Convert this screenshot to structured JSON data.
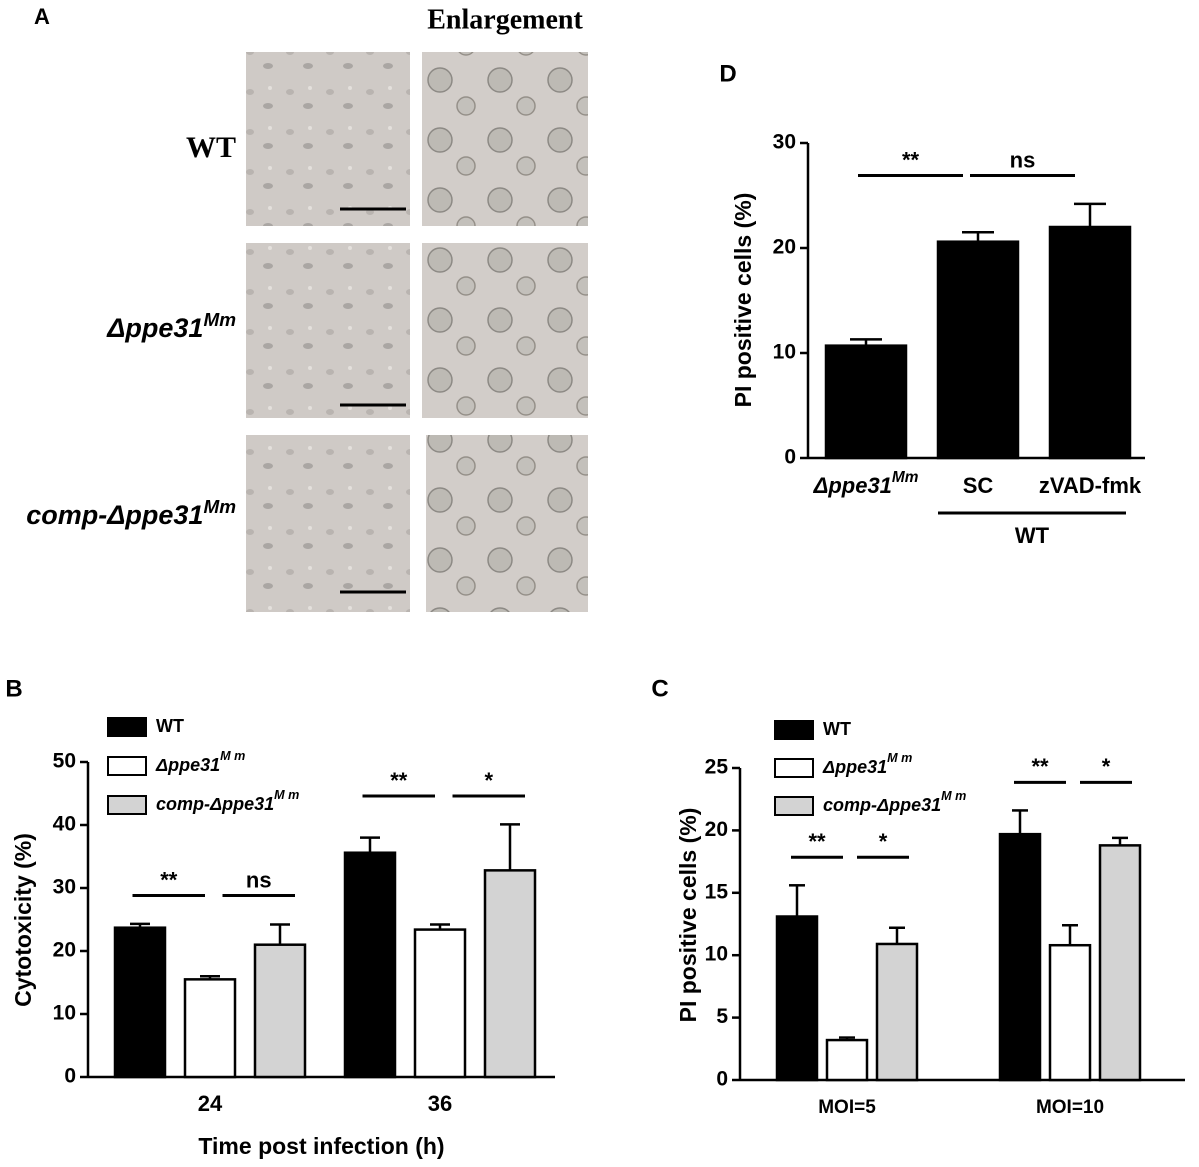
{
  "panel_a": {
    "label": "A",
    "title": "Enlargement",
    "rows": [
      {
        "label": "WT"
      },
      {
        "label": "Δppe31",
        "superscript": "Mm"
      },
      {
        "label": "comp-Δppe31",
        "superscript": "Mm"
      }
    ]
  },
  "chart_data": [
    {
      "type": "bar",
      "panel": "B",
      "ylabel": "Cytotoxicity (%)",
      "xlabel": "Time post infection (h)",
      "categories": [
        "24",
        "36"
      ],
      "ylim": [
        0,
        50
      ],
      "yticks": [
        0,
        10,
        20,
        30,
        40,
        50
      ],
      "series": [
        {
          "name": "WT",
          "color": "#000000",
          "values": [
            23.7,
            35.6
          ],
          "errors": [
            0.6,
            2.4
          ]
        },
        {
          "name": "Δppe31",
          "name_superscript": "M m",
          "color": "#ffffff",
          "values": [
            15.5,
            23.4
          ],
          "errors": [
            0.5,
            0.8
          ]
        },
        {
          "name": "comp-Δppe31",
          "name_superscript": "M m",
          "color": "#d3d3d3",
          "values": [
            21.0,
            32.8
          ],
          "errors": [
            3.2,
            7.3
          ]
        }
      ],
      "annotations": [
        [
          "**",
          "ns"
        ],
        [
          "**",
          "*"
        ]
      ]
    },
    {
      "type": "bar",
      "panel": "C",
      "ylabel": "PI positive cells (%)",
      "categories": [
        "MOI=5",
        "MOI=10"
      ],
      "ylim": [
        0,
        25
      ],
      "yticks": [
        0,
        5,
        10,
        15,
        20,
        25
      ],
      "series": [
        {
          "name": "WT",
          "color": "#000000",
          "values": [
            13.1,
            19.7
          ],
          "errors": [
            2.5,
            1.9
          ]
        },
        {
          "name": "Δppe31",
          "name_superscript": "M m",
          "color": "#ffffff",
          "values": [
            3.2,
            10.8
          ],
          "errors": [
            0.2,
            1.6
          ]
        },
        {
          "name": "comp-Δppe31",
          "name_superscript": "M m",
          "color": "#d3d3d3",
          "values": [
            10.9,
            18.8
          ],
          "errors": [
            1.3,
            0.6
          ]
        }
      ],
      "annotations": [
        [
          "**",
          "*"
        ],
        [
          "**",
          "*"
        ]
      ]
    },
    {
      "type": "bar",
      "panel": "D",
      "ylabel": "PI positive cells (%)",
      "categories": [
        "Δppe31",
        "SC",
        "zVAD-fmk"
      ],
      "category_superscripts": [
        "Mm",
        null,
        null
      ],
      "group_label": "WT",
      "ylim": [
        0,
        30
      ],
      "yticks": [
        0,
        10,
        20,
        30
      ],
      "values": [
        10.7,
        20.6,
        22.0
      ],
      "errors": [
        0.6,
        0.9,
        2.2
      ],
      "color": "#000000",
      "annotations": [
        "**",
        "ns"
      ]
    }
  ]
}
